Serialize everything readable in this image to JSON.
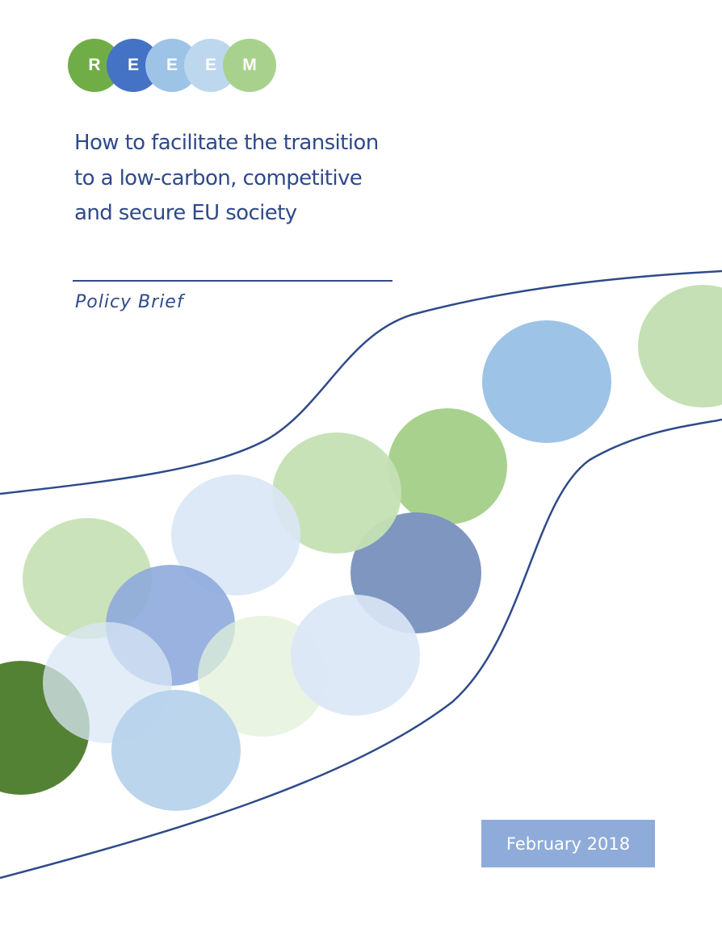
{
  "logo": {
    "letters": [
      {
        "char": "R",
        "color": "#70ad47"
      },
      {
        "char": "E",
        "color": "#4472c4"
      },
      {
        "char": "E",
        "color": "#9dc3e6"
      },
      {
        "char": "E",
        "color": "#bdd7ee"
      },
      {
        "char": "M",
        "color": "#a9d18e"
      }
    ]
  },
  "title": "How to facilitate the transition to a low-carbon, competitive and secure EU society",
  "subtitle": "Policy Brief",
  "date": "February 2018",
  "colors": {
    "title_text": "#2f4a8a",
    "rule": "#2f4a8a",
    "curve": "#2f4a8a",
    "date_box": "#8eabd9",
    "date_text": "#ffffff",
    "bubble_dark_green": "#548235",
    "bubble_green": "#a9d18e",
    "bubble_pale_green": "#c5e0b4",
    "bubble_lightest_green": "#e2f0d9",
    "bubble_navy": "#7e96c0",
    "bubble_blue": "#8eaadb",
    "bubble_sky": "#9dc3e6",
    "bubble_light_sky": "#b7d3ec",
    "bubble_paler_sky": "#dae7f6"
  }
}
